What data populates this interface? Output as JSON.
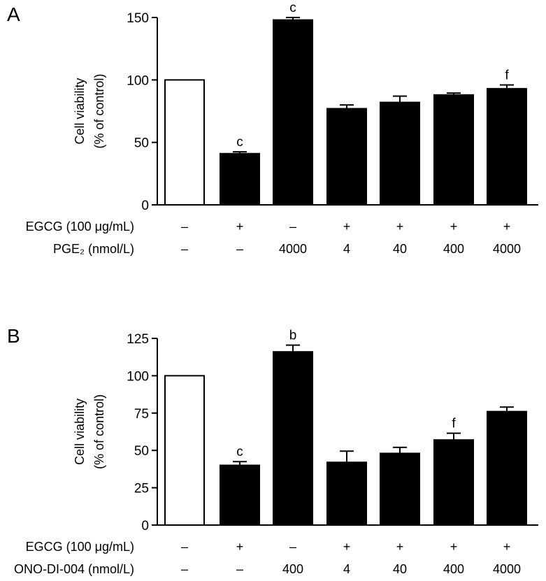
{
  "chart_data": [
    {
      "type": "bar",
      "panel_label": "A",
      "ylabel_lines": [
        "Cell viability",
        "(% of control)"
      ],
      "ylim": [
        0,
        150
      ],
      "yticks": [
        0,
        50,
        100,
        150
      ],
      "categories": [
        "1",
        "2",
        "3",
        "4",
        "5",
        "6",
        "7"
      ],
      "values": [
        100,
        41,
        148,
        77,
        82,
        88,
        93
      ],
      "errors": [
        0,
        1.5,
        2,
        3,
        5,
        1.5,
        3
      ],
      "fills": [
        "#ffffff",
        "#000000",
        "#000000",
        "#000000",
        "#000000",
        "#000000",
        "#000000"
      ],
      "significance": [
        "",
        "c",
        "c",
        "",
        "",
        "",
        "f"
      ],
      "conditions": [
        {
          "label": "EGCG (100 μg/mL)",
          "values": [
            "–",
            "+",
            "–",
            "+",
            "+",
            "+",
            "+"
          ]
        },
        {
          "label": "PGE₂ (nmol/L)",
          "values": [
            "–",
            "–",
            "4000",
            "4",
            "40",
            "400",
            "4000"
          ]
        }
      ]
    },
    {
      "type": "bar",
      "panel_label": "B",
      "ylabel_lines": [
        "Cell viability",
        "(% of control)"
      ],
      "ylim": [
        0,
        125
      ],
      "yticks": [
        0,
        25,
        50,
        75,
        100,
        125
      ],
      "categories": [
        "1",
        "2",
        "3",
        "4",
        "5",
        "6",
        "7"
      ],
      "values": [
        100,
        40,
        116,
        42,
        48,
        57,
        76
      ],
      "errors": [
        0,
        2.5,
        4.5,
        7.5,
        4,
        4.5,
        3
      ],
      "fills": [
        "#ffffff",
        "#000000",
        "#000000",
        "#000000",
        "#000000",
        "#000000",
        "#000000"
      ],
      "significance": [
        "",
        "c",
        "b",
        "",
        "",
        "f",
        ""
      ],
      "conditions": [
        {
          "label": "EGCG (100 μg/mL)",
          "values": [
            "–",
            "+",
            "–",
            "+",
            "+",
            "+",
            "+"
          ]
        },
        {
          "label": "ONO-DI-004 (nmol/L)",
          "values": [
            "–",
            "–",
            "400",
            "4",
            "40",
            "400",
            "4000"
          ]
        }
      ]
    }
  ]
}
